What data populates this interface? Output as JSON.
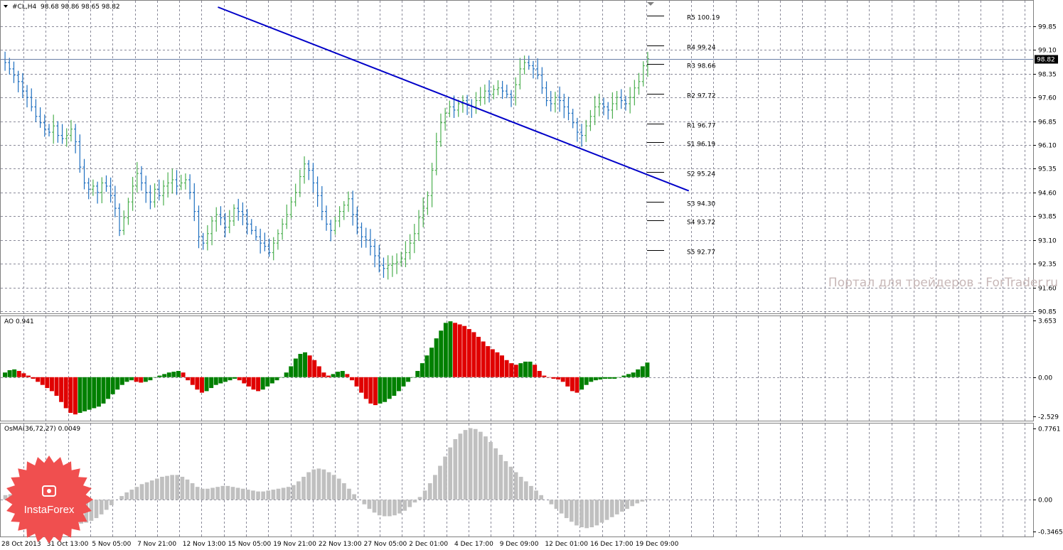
{
  "header": {
    "symbol_label": "#CL,H4",
    "ohlc": "98.68 98.86 98.65 98.82"
  },
  "watermark": "Портал для трейдеров - ForTrader.ru",
  "logo": "InstaForex",
  "chart_data": [
    {
      "type": "line",
      "name": "price",
      "y_ticks": [
        "99.85",
        "99.10",
        "98.35",
        "97.60",
        "96.85",
        "96.10",
        "95.35",
        "94.60",
        "93.85",
        "93.10",
        "92.35",
        "91.60",
        "90.85"
      ],
      "ylim": [
        90.85,
        100.45
      ],
      "current_price": 98.82,
      "x_ticks": [
        "28 Oct 2013",
        "31 Oct 13:00",
        "5 Nov 05:00",
        "7 Nov 21:00",
        "12 Nov 13:00",
        "15 Nov 05:00",
        "19 Nov 21:00",
        "22 Nov 13:00",
        "27 Nov 05:00",
        "2 Dec 01:00",
        "4 Dec 17:00",
        "9 Dec 09:00",
        "12 Dec 01:00",
        "16 Dec 17:00",
        "19 Dec 09:00"
      ],
      "close_series": [
        98.7,
        98.5,
        98.3,
        98.1,
        97.8,
        97.6,
        97.3,
        97.0,
        96.8,
        96.6,
        96.5,
        96.7,
        96.4,
        96.3,
        96.4,
        96.6,
        96.2,
        95.4,
        94.9,
        94.7,
        94.8,
        94.6,
        94.9,
        94.8,
        94.5,
        94.1,
        93.4,
        93.8,
        94.3,
        94.8,
        95.2,
        94.9,
        94.6,
        94.3,
        94.7,
        94.5,
        94.8,
        94.9,
        95.0,
        94.8,
        94.9,
        95.0,
        94.6,
        94.0,
        93.2,
        93.0,
        93.3,
        93.7,
        93.9,
        93.8,
        93.5,
        93.7,
        94.1,
        94.0,
        93.9,
        93.6,
        93.4,
        93.2,
        93.0,
        92.9,
        92.7,
        93.0,
        93.3,
        93.6,
        93.9,
        94.3,
        94.6,
        95.1,
        95.5,
        95.3,
        94.9,
        94.5,
        94.0,
        93.6,
        93.4,
        93.7,
        94.0,
        94.2,
        94.4,
        93.9,
        93.5,
        93.2,
        93.1,
        92.9,
        92.6,
        92.3,
        92.2,
        92.3,
        92.35,
        92.4,
        92.5,
        92.7,
        93.0,
        93.3,
        93.8,
        94.1,
        94.5,
        95.3,
        96.2,
        96.8,
        97.1,
        97.3,
        97.2,
        97.4,
        97.5,
        97.35,
        97.3,
        97.5,
        97.6,
        97.8,
        97.7,
        97.85,
        97.9,
        97.8,
        97.7,
        97.6,
        98.0,
        98.5,
        98.7,
        98.6,
        98.5,
        98.3,
        97.9,
        97.5,
        97.4,
        97.6,
        97.5,
        97.3,
        97.1,
        96.8,
        96.5,
        96.4,
        96.7,
        97.0,
        97.3,
        97.4,
        97.3,
        97.2,
        97.4,
        97.6,
        97.5,
        97.4,
        97.6,
        97.9,
        98.1,
        98.6,
        98.82
      ],
      "trendline": {
        "start": [
          0.205,
          100.45
        ],
        "end": [
          0.648,
          94.65
        ]
      },
      "pivot_levels": [
        {
          "label": "R5 100.19",
          "value": 100.19
        },
        {
          "label": "R4 99.24",
          "value": 99.24
        },
        {
          "label": "R3 98.66",
          "value": 98.66
        },
        {
          "label": "R2 97.72",
          "value": 97.72
        },
        {
          "label": "R1 96.77",
          "value": 96.77
        },
        {
          "label": "S1 96.19",
          "value": 96.19
        },
        {
          "label": "S2 95.24",
          "value": 95.24
        },
        {
          "label": "S3 94.30",
          "value": 94.3
        },
        {
          "label": "S4 93.72",
          "value": 93.72
        },
        {
          "label": "S5 92.77",
          "value": 92.77
        }
      ],
      "colors": {
        "up": "#4caf50",
        "down": "#1e6fc0",
        "trend": "#0000c8",
        "current_line": "#6b7fa6"
      }
    },
    {
      "type": "bar",
      "name": "AO",
      "label": "AO 0.941",
      "y_ticks": [
        "3.653",
        "0.00",
        "-2.529"
      ],
      "ylim": [
        -2.529,
        3.653
      ],
      "values": [
        0.3,
        0.45,
        0.5,
        0.4,
        0.25,
        0.1,
        -0.1,
        -0.3,
        -0.5,
        -0.7,
        -0.9,
        -1.2,
        -1.6,
        -2.0,
        -2.3,
        -2.4,
        -2.3,
        -2.2,
        -2.1,
        -2.0,
        -1.9,
        -1.7,
        -1.4,
        -1.1,
        -0.8,
        -0.5,
        -0.3,
        -0.2,
        -0.3,
        -0.35,
        -0.3,
        -0.2,
        0.0,
        0.1,
        0.2,
        0.3,
        0.35,
        0.4,
        0.3,
        -0.2,
        -0.5,
        -0.8,
        -1.0,
        -0.9,
        -0.7,
        -0.5,
        -0.4,
        -0.3,
        -0.2,
        -0.1,
        -0.2,
        -0.4,
        -0.6,
        -0.8,
        -0.9,
        -0.8,
        -0.6,
        -0.4,
        -0.2,
        0.0,
        0.3,
        0.7,
        1.2,
        1.5,
        1.6,
        1.4,
        1.1,
        0.7,
        0.3,
        0.1,
        0.2,
        0.35,
        0.4,
        0.2,
        -0.2,
        -0.6,
        -1.0,
        -1.4,
        -1.7,
        -1.8,
        -1.7,
        -1.6,
        -1.4,
        -1.2,
        -0.9,
        -0.6,
        -0.3,
        0.0,
        0.4,
        0.9,
        1.4,
        1.9,
        2.5,
        3.0,
        3.5,
        3.6,
        3.5,
        3.4,
        3.3,
        3.1,
        2.9,
        2.6,
        2.3,
        2.0,
        1.8,
        1.6,
        1.4,
        1.1,
        0.9,
        0.8,
        0.9,
        1.0,
        1.0,
        0.8,
        0.4,
        0.1,
        0.0,
        -0.1,
        -0.15,
        -0.3,
        -0.6,
        -0.9,
        -1.0,
        -0.8,
        -0.5,
        -0.3,
        -0.2,
        -0.15,
        -0.1,
        -0.1,
        -0.1,
        0.0,
        0.1,
        0.2,
        0.3,
        0.5,
        0.7,
        0.941
      ],
      "colors": {
        "up": "#008000",
        "down": "#e00000"
      }
    },
    {
      "type": "bar",
      "name": "OsMA",
      "label": "OsMA(36,72,27) 0.0049",
      "y_ticks": [
        "0.7761",
        "0.00",
        "-0.3465"
      ],
      "ylim": [
        -0.3465,
        0.7761
      ],
      "values": [
        0.05,
        0.06,
        0.07,
        0.08,
        0.08,
        0.06,
        0.03,
        0.0,
        -0.04,
        -0.08,
        -0.12,
        -0.16,
        -0.2,
        -0.23,
        -0.25,
        -0.26,
        -0.25,
        -0.23,
        -0.2,
        -0.16,
        -0.11,
        -0.06,
        0.0,
        0.04,
        0.08,
        0.11,
        0.14,
        0.17,
        0.19,
        0.21,
        0.23,
        0.25,
        0.26,
        0.27,
        0.27,
        0.25,
        0.22,
        0.18,
        0.14,
        0.12,
        0.12,
        0.13,
        0.14,
        0.15,
        0.15,
        0.14,
        0.13,
        0.12,
        0.11,
        0.1,
        0.09,
        0.09,
        0.1,
        0.11,
        0.12,
        0.13,
        0.14,
        0.16,
        0.2,
        0.25,
        0.3,
        0.33,
        0.34,
        0.33,
        0.3,
        0.27,
        0.23,
        0.18,
        0.12,
        0.06,
        0.0,
        -0.05,
        -0.1,
        -0.14,
        -0.17,
        -0.18,
        -0.18,
        -0.17,
        -0.15,
        -0.12,
        -0.08,
        -0.03,
        0.03,
        0.1,
        0.18,
        0.27,
        0.37,
        0.47,
        0.57,
        0.66,
        0.72,
        0.76,
        0.78,
        0.77,
        0.74,
        0.69,
        0.63,
        0.56,
        0.49,
        0.42,
        0.36,
        0.3,
        0.25,
        0.2,
        0.15,
        0.1,
        0.05,
        0.0,
        -0.05,
        -0.1,
        -0.15,
        -0.2,
        -0.24,
        -0.28,
        -0.3,
        -0.31,
        -0.3,
        -0.28,
        -0.25,
        -0.22,
        -0.19,
        -0.16,
        -0.13,
        -0.1,
        -0.07,
        -0.04,
        -0.02,
        0.0049
      ],
      "colors": {
        "bar": "#c0c0c0"
      }
    }
  ]
}
